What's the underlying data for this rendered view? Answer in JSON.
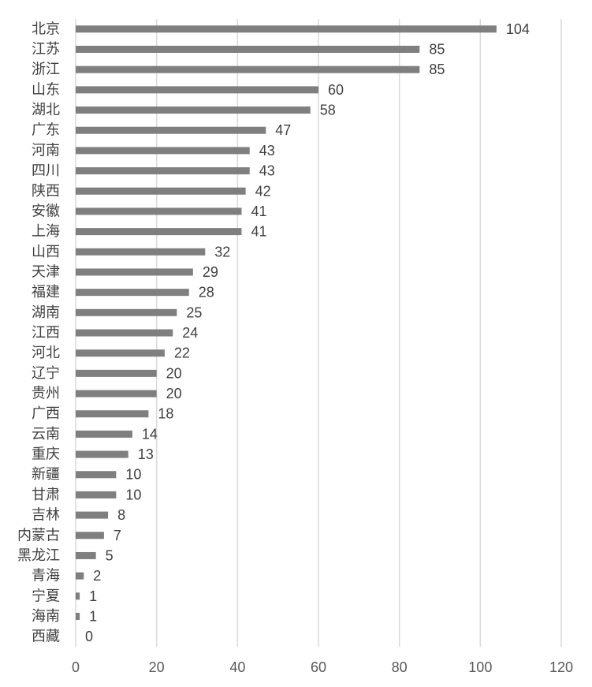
{
  "chart_data": {
    "type": "bar",
    "orientation": "horizontal",
    "categories": [
      "北京",
      "江苏",
      "浙江",
      "山东",
      "湖北",
      "广东",
      "河南",
      "四川",
      "陕西",
      "安徽",
      "上海",
      "山西",
      "天津",
      "福建",
      "湖南",
      "江西",
      "河北",
      "辽宁",
      "贵州",
      "广西",
      "云南",
      "重庆",
      "新疆",
      "甘肃",
      "吉林",
      "内蒙古",
      "黑龙江",
      "青海",
      "宁夏",
      "海南",
      "西藏"
    ],
    "values": [
      104,
      85,
      85,
      60,
      58,
      47,
      43,
      43,
      42,
      41,
      41,
      32,
      29,
      28,
      25,
      24,
      22,
      20,
      20,
      18,
      14,
      13,
      10,
      10,
      8,
      7,
      5,
      2,
      1,
      1,
      0
    ],
    "xlim": [
      0,
      120
    ],
    "xticks": [
      0,
      20,
      40,
      60,
      80,
      100,
      120
    ],
    "grid": true,
    "legend": "none",
    "data_labels": true,
    "colors": {
      "bar": "#7f7f7f",
      "gridline": "#d9d9d9",
      "category_text": "#404040",
      "value_text": "#404040",
      "tick_text": "#595959"
    }
  }
}
